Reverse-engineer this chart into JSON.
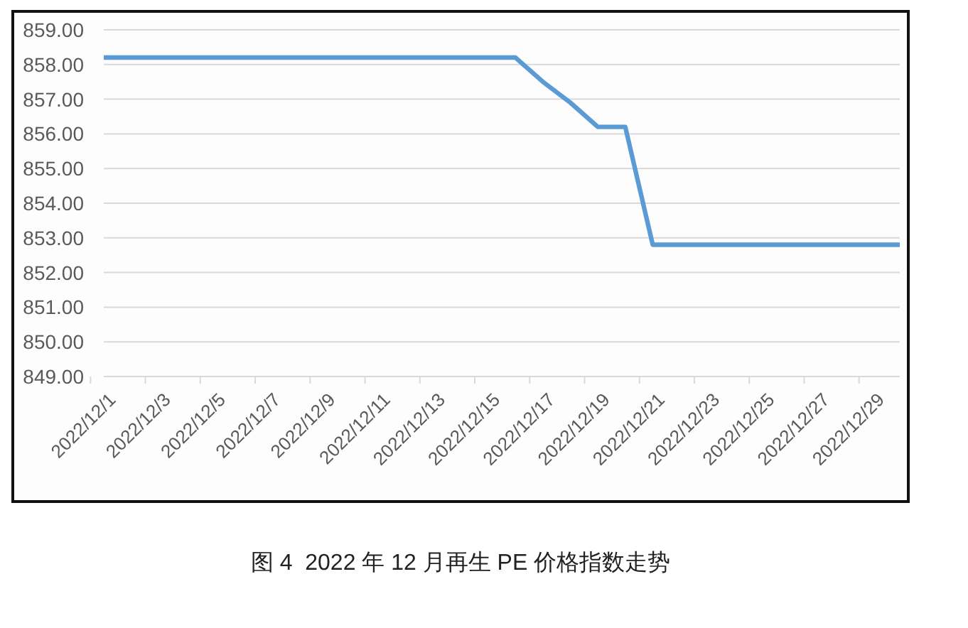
{
  "chart_data": {
    "type": "line",
    "title": "图 4  2022 年 12 月再生 PE 价格指数走势",
    "categories": [
      "2022/12/1",
      null,
      "2022/12/3",
      null,
      "2022/12/5",
      null,
      "2022/12/7",
      null,
      "2022/12/9",
      null,
      "2022/12/11",
      null,
      "2022/12/13",
      null,
      "2022/12/15",
      null,
      "2022/12/17",
      null,
      "2022/12/19",
      null,
      "2022/12/21",
      null,
      "2022/12/23",
      null,
      "2022/12/25",
      null,
      "2022/12/27",
      null,
      "2022/12/29",
      null
    ],
    "series": [
      {
        "color": "#5b9bd5",
        "values": [
          858.2,
          858.2,
          858.2,
          858.2,
          858.2,
          858.2,
          858.2,
          858.2,
          858.2,
          858.2,
          858.2,
          858.2,
          858.2,
          858.2,
          858.2,
          858.2,
          857.5,
          856.9,
          856.2,
          856.2,
          852.8,
          852.8,
          852.8,
          852.8,
          852.8,
          852.8,
          852.8,
          852.8,
          852.8,
          852.8
        ]
      }
    ],
    "ylim": [
      849,
      859
    ],
    "yticks": [
      {
        "value": 849,
        "label": "849.00"
      },
      {
        "value": 850,
        "label": "850.00"
      },
      {
        "value": 851,
        "label": "851.00"
      },
      {
        "value": 852,
        "label": "852.00"
      },
      {
        "value": 853,
        "label": "853.00"
      },
      {
        "value": 854,
        "label": "854.00"
      },
      {
        "value": 855,
        "label": "855.00"
      },
      {
        "value": 856,
        "label": "856.00"
      },
      {
        "value": 857,
        "label": "857.00"
      },
      {
        "value": 858,
        "label": "858.00"
      },
      {
        "value": 859,
        "label": "859.00"
      }
    ],
    "grid": "y"
  }
}
